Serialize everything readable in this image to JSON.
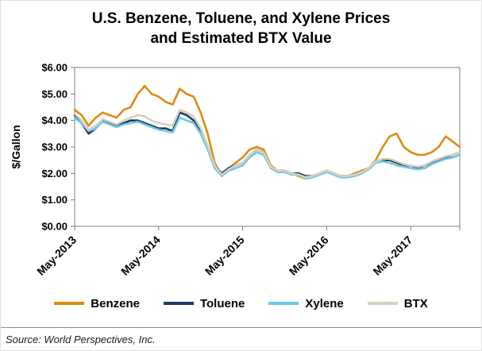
{
  "title_line1": "U.S. Benzene, Toluene, and Xylene Prices",
  "title_line2": "and Estimated BTX Value",
  "source": "Source: World Perspectives, Inc.",
  "chart_data": {
    "type": "line",
    "title": "U.S. Benzene, Toluene, and Xylene Prices and Estimated BTX Value",
    "xlabel": "",
    "ylabel": "$/Gallon",
    "ylim": [
      0,
      6
    ],
    "grid": false,
    "legend_position": "bottom",
    "y_ticks": [
      "$0.00",
      "$1.00",
      "$2.00",
      "$3.00",
      "$4.00",
      "$5.00",
      "$6.00"
    ],
    "y_tick_values": [
      0,
      1,
      2,
      3,
      4,
      5,
      6
    ],
    "x_tick_labels": [
      "May-2013",
      "May-2014",
      "May-2015",
      "May-2016",
      "May-2017"
    ],
    "x_tick_indices": [
      0,
      12,
      24,
      36,
      48
    ],
    "x": [
      "May-13",
      "Jun-13",
      "Jul-13",
      "Aug-13",
      "Sep-13",
      "Oct-13",
      "Nov-13",
      "Dec-13",
      "Jan-14",
      "Feb-14",
      "Mar-14",
      "Apr-14",
      "May-14",
      "Jun-14",
      "Jul-14",
      "Aug-14",
      "Sep-14",
      "Oct-14",
      "Nov-14",
      "Dec-14",
      "Jan-15",
      "Feb-15",
      "Mar-15",
      "Apr-15",
      "May-15",
      "Jun-15",
      "Jul-15",
      "Aug-15",
      "Sep-15",
      "Oct-15",
      "Nov-15",
      "Dec-15",
      "Jan-16",
      "Feb-16",
      "Mar-16",
      "Apr-16",
      "May-16",
      "Jun-16",
      "Jul-16",
      "Aug-16",
      "Sep-16",
      "Oct-16",
      "Nov-16",
      "Dec-16",
      "Jan-17",
      "Feb-17",
      "Mar-17",
      "Apr-17",
      "May-17",
      "Jun-17",
      "Jul-17",
      "Aug-17",
      "Sep-17",
      "Oct-17",
      "Nov-17",
      "Dec-17"
    ],
    "series": [
      {
        "name": "Benzene",
        "color": "#DE8A12",
        "values": [
          4.4,
          4.2,
          3.8,
          4.1,
          4.3,
          4.2,
          4.1,
          4.4,
          4.5,
          5.0,
          5.3,
          5.0,
          4.9,
          4.7,
          4.6,
          5.2,
          5.0,
          4.9,
          4.3,
          3.5,
          2.4,
          1.9,
          2.2,
          2.4,
          2.6,
          2.9,
          3.0,
          2.9,
          2.3,
          2.1,
          2.1,
          2.0,
          1.9,
          1.8,
          1.9,
          2.0,
          2.1,
          2.0,
          1.9,
          1.9,
          2.0,
          2.1,
          2.2,
          2.5,
          3.0,
          3.4,
          3.5,
          3.0,
          2.8,
          2.7,
          2.7,
          2.8,
          3.0,
          3.4,
          3.2,
          3.0
        ]
      },
      {
        "name": "Toluene",
        "color": "#1F3864",
        "values": [
          4.2,
          3.9,
          3.5,
          3.7,
          4.0,
          3.9,
          3.8,
          3.9,
          4.0,
          4.0,
          3.9,
          3.8,
          3.7,
          3.7,
          3.6,
          4.3,
          4.2,
          4.0,
          3.6,
          3.0,
          2.3,
          2.0,
          2.2,
          2.3,
          2.4,
          2.7,
          2.9,
          2.8,
          2.2,
          2.1,
          2.1,
          2.0,
          2.0,
          1.9,
          1.9,
          2.0,
          2.1,
          2.0,
          1.9,
          1.9,
          1.9,
          2.0,
          2.2,
          2.4,
          2.5,
          2.5,
          2.4,
          2.3,
          2.3,
          2.2,
          2.3,
          2.4,
          2.5,
          2.6,
          2.7,
          2.8
        ]
      },
      {
        "name": "Xylene",
        "color": "#6EC9E4",
        "values": [
          4.1,
          3.9,
          3.6,
          3.7,
          3.95,
          3.85,
          3.75,
          3.85,
          3.9,
          3.95,
          3.85,
          3.75,
          3.65,
          3.6,
          3.55,
          4.1,
          4.0,
          3.9,
          3.5,
          2.9,
          2.2,
          1.9,
          2.1,
          2.2,
          2.3,
          2.6,
          2.8,
          2.7,
          2.2,
          2.05,
          2.05,
          1.95,
          1.95,
          1.8,
          1.85,
          1.95,
          2.05,
          1.95,
          1.85,
          1.85,
          1.9,
          2.0,
          2.15,
          2.4,
          2.45,
          2.4,
          2.3,
          2.25,
          2.2,
          2.15,
          2.2,
          2.35,
          2.45,
          2.55,
          2.6,
          2.7
        ]
      },
      {
        "name": "BTX",
        "color": "#D8D0C0",
        "values": [
          4.25,
          4.0,
          3.65,
          3.8,
          4.05,
          3.95,
          3.85,
          4.0,
          4.1,
          4.2,
          4.15,
          4.0,
          3.9,
          3.85,
          3.8,
          4.4,
          4.3,
          4.15,
          3.7,
          3.05,
          2.3,
          1.95,
          2.15,
          2.3,
          2.4,
          2.7,
          2.9,
          2.8,
          2.25,
          2.1,
          2.1,
          2.0,
          1.95,
          1.85,
          1.9,
          2.0,
          2.1,
          2.0,
          1.9,
          1.9,
          1.95,
          2.05,
          2.2,
          2.45,
          2.55,
          2.55,
          2.45,
          2.35,
          2.3,
          2.25,
          2.3,
          2.45,
          2.55,
          2.65,
          2.7,
          2.8
        ]
      }
    ]
  }
}
